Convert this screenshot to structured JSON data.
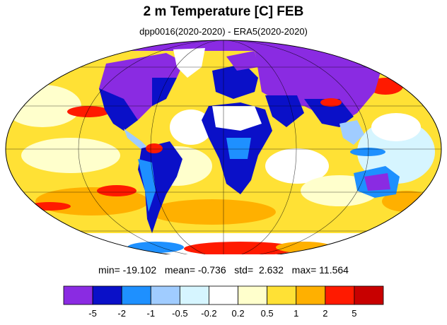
{
  "title": "2 m Temperature [C] FEB",
  "subtitle": "dpp0016(2020-2020) - ERA5(2020-2020)",
  "stats": {
    "min_label": "min=",
    "min": "-19.102",
    "mean_label": "mean=",
    "mean": "-0.736",
    "std_label": "std=",
    "std": "2.632",
    "max_label": "max=",
    "max": "11.564"
  },
  "colorbar": {
    "colors": [
      "#8a2be2",
      "#0a10c8",
      "#1e90ff",
      "#a0ccff",
      "#d6f5ff",
      "#ffffff",
      "#ffffcc",
      "#ffe135",
      "#ffb000",
      "#ff1a00",
      "#c80000"
    ],
    "tick_labels": [
      "-5",
      "-2",
      "-1",
      "-0.5",
      "-0.2",
      "0.2",
      "0.5",
      "1",
      "2",
      "5"
    ]
  },
  "map": {
    "projection": "mollweide",
    "ocean_color": "#ffe135",
    "colors": {
      "strong_neg": "#8a2be2",
      "neg": "#0a10c8",
      "mod_neg": "#1e90ff",
      "weak_neg": "#a0ccff",
      "slight_neg": "#d6f5ff",
      "neutral": "#ffffff",
      "slight_pos": "#ffffcc",
      "weak_pos": "#ffe135",
      "mod_pos": "#ffb000",
      "pos": "#ff1a00",
      "strong_pos": "#c80000"
    }
  }
}
